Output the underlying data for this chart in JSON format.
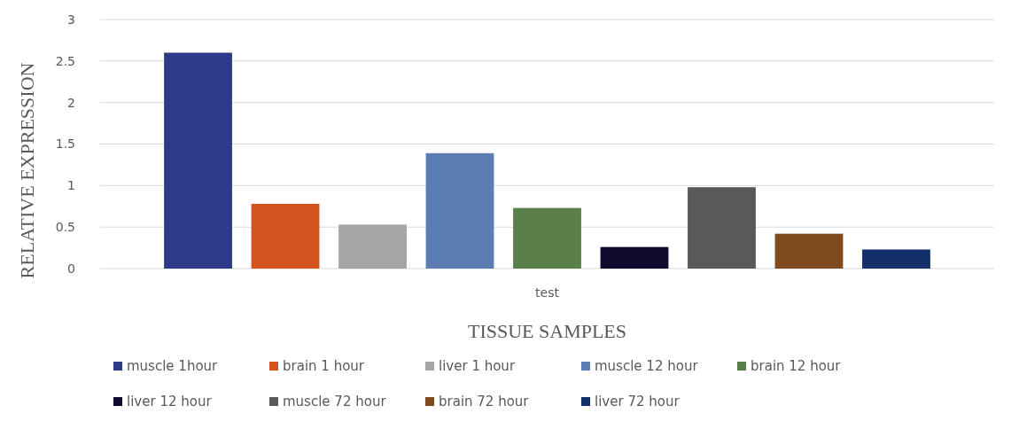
{
  "chart_data": {
    "type": "bar",
    "xlabel": "TISSUE SAMPLES",
    "ylabel": "RELATIVE EXPRESSION",
    "categories": [
      "test"
    ],
    "ylim": [
      0,
      3
    ],
    "yticks": [
      0,
      0.5,
      1,
      1.5,
      2,
      2.5,
      3
    ],
    "grid": "y",
    "legend": "bottom",
    "series": [
      {
        "name": "muscle 1hour",
        "color": "#2e3a87",
        "values": [
          2.6
        ]
      },
      {
        "name": "brain 1 hour",
        "color": "#d4531f",
        "values": [
          0.78
        ]
      },
      {
        "name": "liver 1 hour",
        "color": "#a5a5a5",
        "values": [
          0.53
        ]
      },
      {
        "name": "muscle 12 hour",
        "color": "#5b7db1",
        "values": [
          1.39
        ]
      },
      {
        "name": "brain 12 hour",
        "color": "#5a7f48",
        "values": [
          0.73
        ]
      },
      {
        "name": "liver 12 hour",
        "color": "#0e0b2e",
        "values": [
          0.26
        ]
      },
      {
        "name": "muscle 72 hour",
        "color": "#595959",
        "values": [
          0.98
        ]
      },
      {
        "name": "brain 72 hour",
        "color": "#7f4a1d",
        "values": [
          0.42
        ]
      },
      {
        "name": "liver 72 hour",
        "color": "#14306b",
        "values": [
          0.23
        ]
      }
    ]
  }
}
